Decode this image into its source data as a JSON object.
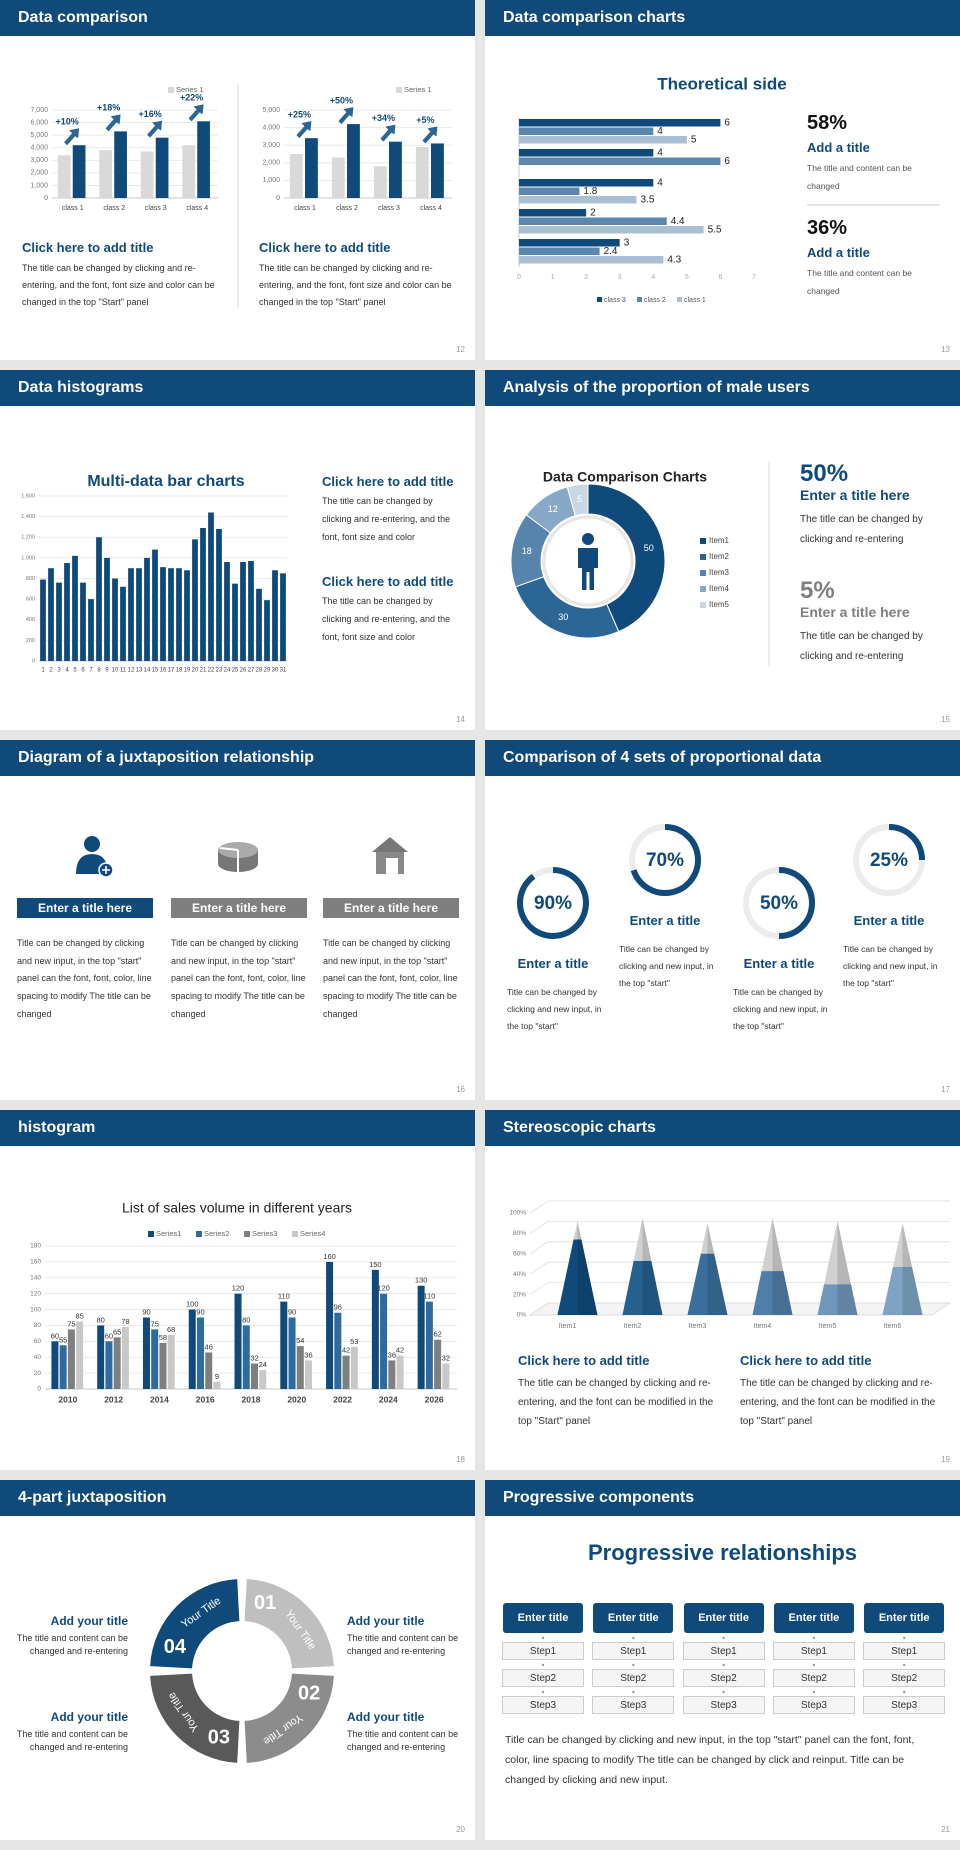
{
  "slides": [
    {
      "header": "Data comparison",
      "page": "12",
      "blocks": [
        {
          "title": "Click here to add title",
          "text": "The title can be changed by clicking and re-entering, and the font, font size and color can be changed in the top \"Start\" panel"
        },
        {
          "title": "Click here to add title",
          "text": "The title can be changed by clicking and re-entering, and the font, font size and color can be changed in the top \"Start\" panel"
        }
      ]
    },
    {
      "header": "Data comparison charts",
      "page": "13",
      "stats": [
        {
          "value": "58%",
          "title": "Add a title",
          "text": "The title and content can be changed"
        },
        {
          "value": "36%",
          "title": "Add a title",
          "text": "The title and content can be changed"
        }
      ]
    },
    {
      "header": "Data histograms",
      "page": "14",
      "blocks": [
        {
          "title": "Click here to add title",
          "text": "The title can be changed by clicking and re-entering, and the font, font size and color"
        },
        {
          "title": "Click here to add title",
          "text": "The title can be changed by clicking and re-entering, and the font, font size and color"
        }
      ]
    },
    {
      "header": "Analysis of the proportion of male users",
      "page": "15",
      "stats": [
        {
          "value": "50%",
          "title": "Enter a title here",
          "text": "The title can be changed by clicking and re-entering"
        },
        {
          "value": "5%",
          "title": "Enter a title here",
          "text": "The title can be changed by clicking and re-entering"
        }
      ]
    },
    {
      "header": "Diagram of a juxtaposition relationship",
      "page": "16",
      "items": [
        {
          "title": "Enter a title here",
          "text": "Title can be changed by clicking and new input, in the top \"start\" panel can the font, font, color, line spacing to modify The title can be changed"
        },
        {
          "title": "Enter a title here",
          "text": "Title can be changed by clicking and new input, in the top \"start\" panel can the font, font, color, line spacing to modify The title can be changed"
        },
        {
          "title": "Enter a title here",
          "text": "Title can be changed by clicking and new input, in the top \"start\" panel can the font, font, color, line spacing to modify The title can be changed"
        }
      ]
    },
    {
      "header": "Comparison of 4 sets of proportional data",
      "page": "17",
      "items": [
        {
          "title": "Enter a title",
          "text": "Title can be changed by clicking and new input, in the top \"start\""
        },
        {
          "title": "Enter a title",
          "text": "Title can be changed by clicking and new input, in the top \"start\""
        },
        {
          "title": "Enter a title",
          "text": "Title can be changed by clicking and new input, in the top \"start\""
        },
        {
          "title": "Enter a title",
          "text": "Title can be changed by clicking and new input, in the top \"start\""
        }
      ]
    },
    {
      "header": "histogram",
      "page": "18"
    },
    {
      "header": "Stereoscopic charts",
      "page": "19",
      "blocks": [
        {
          "title": "Click here to add title",
          "text": "The title can be changed by clicking and re-entering, and the font can be modified in the top \"Start\" panel"
        },
        {
          "title": "Click here to add title",
          "text": "The title can be changed by clicking and re-entering, and the font can be modified in the top \"Start\" panel"
        }
      ]
    },
    {
      "header": "4-part juxtaposition",
      "page": "20",
      "items": [
        {
          "title": "Add your title",
          "text": "The title and content can be changed and re-entering"
        },
        {
          "title": "Add your title",
          "text": "The title and content can be changed and re-entering"
        },
        {
          "title": "Add your title",
          "text": "The title and content can be changed and re-entering"
        },
        {
          "title": "Add your title",
          "text": "The title and content can be changed and re-entering"
        }
      ],
      "ring": [
        {
          "number": "01",
          "label": "Your Title"
        },
        {
          "number": "02",
          "label": "Your Title"
        },
        {
          "number": "03",
          "label": "Your Title"
        },
        {
          "number": "04",
          "label": "Your Title"
        }
      ]
    },
    {
      "header": "Progressive components",
      "page": "21",
      "title": "Progressive relationships",
      "columns": [
        {
          "title": "Enter title",
          "steps": [
            "Step1",
            "Step2",
            "Step3"
          ]
        },
        {
          "title": "Enter title",
          "steps": [
            "Step1",
            "Step2",
            "Step3"
          ]
        },
        {
          "title": "Enter title",
          "steps": [
            "Step1",
            "Step2",
            "Step3"
          ]
        },
        {
          "title": "Enter title",
          "steps": [
            "Step1",
            "Step2",
            "Step3"
          ]
        },
        {
          "title": "Enter title",
          "steps": [
            "Step1",
            "Step2",
            "Step3"
          ]
        }
      ],
      "text": "Title can be changed by clicking and new input, in the top \"start\" panel can the font, font, color, line spacing to modify The title can be changed by click and reinput. Title can be changed by clicking and new input."
    }
  ],
  "chart_data": [
    {
      "type": "bar",
      "categories": [
        "class 1",
        "class 2",
        "class 3",
        "class 4"
      ],
      "series": [
        {
          "name": "Series 1",
          "color": "#d9d9d9",
          "values": [
            3400,
            3800,
            3700,
            4200
          ]
        },
        {
          "color": "#0f4a7a",
          "values": [
            4200,
            5300,
            4800,
            6100
          ]
        }
      ],
      "annotations": [
        "+10%",
        "+18%",
        "+16%",
        "+22%"
      ],
      "ylim": [
        0,
        7000
      ],
      "yticks": [
        0,
        {
          "value": 1000,
          "label": "1,000"
        },
        {
          "value": 2000,
          "label": "2,000"
        },
        {
          "value": 3000,
          "label": "3,000"
        },
        {
          "value": 4000,
          "label": "4,000"
        },
        {
          "value": 5000,
          "label": "5,000"
        },
        {
          "value": 6000,
          "label": "6,000"
        },
        {
          "value": 7000,
          "label": "7,000"
        }
      ],
      "grid": true
    },
    {
      "type": "bar",
      "categories": [
        "class 1",
        "class 2",
        "class 3",
        "class 4"
      ],
      "series": [
        {
          "name": "Series 1",
          "color": "#d9d9d9",
          "values": [
            2500,
            2300,
            1800,
            2900
          ]
        },
        {
          "color": "#0f4a7a",
          "values": [
            3400,
            4200,
            3200,
            3100
          ]
        }
      ],
      "annotations": [
        "+25%",
        "+50%",
        "+34%",
        "+5%"
      ],
      "ylim": [
        0,
        5000
      ],
      "yticks": [
        0,
        {
          "value": 1000,
          "label": "1,000"
        },
        {
          "value": 2000,
          "label": "2,000"
        },
        {
          "value": 3000,
          "label": "3,000"
        },
        {
          "value": 4000,
          "label": "4,000"
        },
        {
          "value": 5000,
          "label": "5,000"
        }
      ],
      "grid": true
    },
    {
      "type": "hbar",
      "title": "Theoretical side",
      "categories": [
        null,
        null,
        null,
        null,
        null
      ],
      "series": [
        {
          "name": "class 3",
          "color": "#0f4a7a",
          "values": [
            6,
            4,
            4,
            2,
            3
          ]
        },
        {
          "name": "class 2",
          "color": "#5b86ad",
          "values": [
            4,
            6,
            1.8,
            4.4,
            2.4
          ]
        },
        {
          "name": "class 1",
          "color": "#a9bfd4",
          "values": [
            5,
            null,
            3.5,
            5.5,
            4.3
          ]
        }
      ],
      "xlim": [
        0,
        7
      ],
      "xticks": [
        0,
        1,
        2,
        3,
        4,
        5,
        6,
        7
      ],
      "data_labels": true
    },
    {
      "type": "bar",
      "title": "Multi-data bar charts",
      "categories": [
        "1",
        "2",
        "3",
        "4",
        "5",
        "6",
        "7",
        "8",
        "9",
        "10",
        "11",
        "12",
        "13",
        "14",
        "15",
        "16",
        "17",
        "18",
        "19",
        "20",
        "21",
        "22",
        "23",
        "24",
        "25",
        "26",
        "27",
        "28",
        "29",
        "30",
        "31"
      ],
      "series": [
        {
          "color": "#0f4a7a",
          "values": [
            790,
            900,
            760,
            950,
            1020,
            760,
            600,
            1200,
            1000,
            800,
            720,
            900,
            900,
            1000,
            1080,
            910,
            900,
            900,
            880,
            1180,
            1290,
            1440,
            1280,
            960,
            750,
            960,
            970,
            700,
            590,
            880,
            850
          ]
        }
      ],
      "ylim": [
        0,
        1600
      ],
      "yticks": [
        0,
        200,
        400,
        600,
        800,
        {
          "value": 1000,
          "label": "1,000"
        },
        {
          "value": 1200,
          "label": "1,200"
        },
        {
          "value": 1400,
          "label": "1,400"
        },
        {
          "value": 1600,
          "label": "1,600"
        }
      ],
      "grid": true
    },
    {
      "type": "donut",
      "title": "Data Comparison Charts",
      "categories": [
        "Item1",
        "Item2",
        "Item3",
        "Item4",
        "Item5"
      ],
      "values": [
        50,
        30,
        18,
        12,
        5
      ],
      "colors": [
        "#0f4a7a",
        "#2c6694",
        "#5684ad",
        "#87a8c7",
        "#c9d7e5"
      ]
    },
    {
      "type": "ring",
      "values": [
        90,
        70,
        50,
        25
      ],
      "value_labels": [
        "90%",
        "70%",
        "50%",
        "25%"
      ],
      "color": "#0f4a7a"
    },
    {
      "type": "bar",
      "title": "List of sales volume in different years",
      "categories": [
        "2010",
        "2012",
        "2014",
        "2016",
        "2018",
        "2020",
        "2022",
        "2024",
        "2026"
      ],
      "series": [
        {
          "name": "Series1",
          "color": "#0f4a7a",
          "values": [
            60,
            80,
            90,
            100,
            120,
            110,
            160,
            150,
            130
          ]
        },
        {
          "name": "Series2",
          "color": "#2f6b9e",
          "values": [
            55,
            60,
            75,
            90,
            80,
            90,
            96,
            120,
            110
          ]
        },
        {
          "name": "Series3",
          "color": "#7f7f7f",
          "values": [
            75,
            65,
            58,
            46,
            32,
            54,
            42,
            36,
            62
          ]
        },
        {
          "name": "Series4",
          "color": "#c8c8c8",
          "values": [
            85,
            78,
            68,
            9,
            24,
            36,
            53,
            42,
            32
          ]
        }
      ],
      "ylim": [
        0,
        180
      ],
      "yticks": [
        0,
        20,
        40,
        60,
        80,
        100,
        120,
        140,
        160,
        180
      ],
      "grid": true,
      "data_labels": true
    },
    {
      "type": "cone",
      "categories": [
        "Item1",
        "Item2",
        "Item3",
        "Item4",
        "Item5",
        "Item6"
      ],
      "series": [
        {
          "color": "#d0d0d0",
          "values": [
            92,
            95,
            90,
            95,
            92,
            90
          ]
        },
        {
          "colors": [
            "#0f4a7a",
            "#25608f",
            "#3a6f9d",
            "#4f7fa8",
            "#6f97bb",
            "#7ea3c4"
          ],
          "values": [
            74,
            53,
            60,
            43,
            30,
            47
          ]
        }
      ],
      "ylim": [
        0,
        100
      ],
      "yticks": [
        {
          "value": 0,
          "label": "0%"
        },
        {
          "value": 20,
          "label": "20%"
        },
        {
          "value": 40,
          "label": "40%"
        },
        {
          "value": 60,
          "label": "60%"
        },
        {
          "value": 80,
          "label": "80%"
        },
        {
          "value": 100,
          "label": "100%"
        }
      ],
      "grid": true
    }
  ]
}
